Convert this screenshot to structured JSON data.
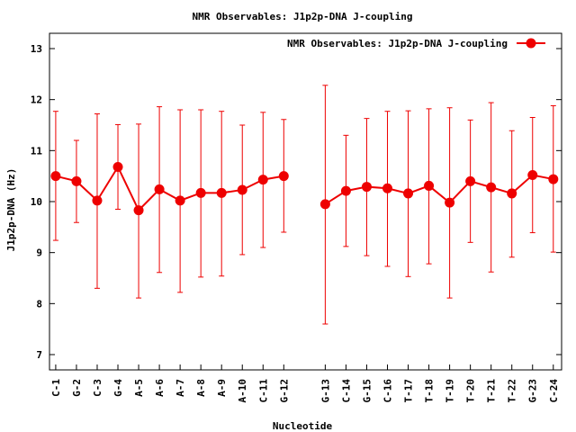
{
  "chart_data": {
    "type": "line",
    "title": "NMR Observables: J1p2p-DNA J-coupling",
    "xlabel": "Nucleotide",
    "ylabel": "J1p2p-DNA (Hz)",
    "ylim": [
      6.7,
      13.3
    ],
    "yticks": [
      7,
      8,
      9,
      10,
      11,
      12,
      13
    ],
    "xlim": [
      0.7,
      25.4
    ],
    "grid": false,
    "legend_position": "top-right",
    "series": [
      {
        "name": "NMR Observables: J1p2p-DNA J-coupling",
        "color": "#ee0000",
        "marker": "circle",
        "segments": [
          {
            "points": [
              {
                "x": 1,
                "label": "C-1",
                "y": 10.5,
                "err_low": 9.24,
                "err_high": 11.77
              },
              {
                "x": 2,
                "label": "G-2",
                "y": 10.4,
                "err_low": 9.59,
                "err_high": 11.2
              },
              {
                "x": 3,
                "label": "C-3",
                "y": 10.02,
                "err_low": 8.3,
                "err_high": 11.72
              },
              {
                "x": 4,
                "label": "G-4",
                "y": 10.68,
                "err_low": 9.85,
                "err_high": 11.51
              },
              {
                "x": 5,
                "label": "A-5",
                "y": 9.83,
                "err_low": 8.11,
                "err_high": 11.52
              },
              {
                "x": 6,
                "label": "A-6",
                "y": 10.24,
                "err_low": 8.61,
                "err_high": 11.86
              },
              {
                "x": 7,
                "label": "A-7",
                "y": 10.02,
                "err_low": 8.22,
                "err_high": 11.8
              },
              {
                "x": 8,
                "label": "A-8",
                "y": 10.17,
                "err_low": 8.52,
                "err_high": 11.8
              },
              {
                "x": 9,
                "label": "A-9",
                "y": 10.17,
                "err_low": 8.54,
                "err_high": 11.77
              },
              {
                "x": 10,
                "label": "A-10",
                "y": 10.23,
                "err_low": 8.96,
                "err_high": 11.5
              },
              {
                "x": 11,
                "label": "C-11",
                "y": 10.43,
                "err_low": 9.1,
                "err_high": 11.75
              },
              {
                "x": 12,
                "label": "G-12",
                "y": 10.5,
                "err_low": 9.4,
                "err_high": 11.61
              }
            ]
          },
          {
            "points": [
              {
                "x": 14,
                "label": "G-13",
                "y": 9.95,
                "err_low": 7.6,
                "err_high": 12.28
              },
              {
                "x": 15,
                "label": "C-14",
                "y": 10.21,
                "err_low": 9.12,
                "err_high": 11.3
              },
              {
                "x": 16,
                "label": "G-15",
                "y": 10.29,
                "err_low": 8.94,
                "err_high": 11.63
              },
              {
                "x": 17,
                "label": "C-16",
                "y": 10.26,
                "err_low": 8.73,
                "err_high": 11.77
              },
              {
                "x": 18,
                "label": "T-17",
                "y": 10.16,
                "err_low": 8.53,
                "err_high": 11.78
              },
              {
                "x": 19,
                "label": "T-18",
                "y": 10.31,
                "err_low": 8.78,
                "err_high": 11.82
              },
              {
                "x": 20,
                "label": "T-19",
                "y": 9.98,
                "err_low": 8.11,
                "err_high": 11.84
              },
              {
                "x": 21,
                "label": "T-20",
                "y": 10.4,
                "err_low": 9.2,
                "err_high": 11.6
              },
              {
                "x": 22,
                "label": "T-21",
                "y": 10.28,
                "err_low": 8.62,
                "err_high": 11.94
              },
              {
                "x": 23,
                "label": "T-22",
                "y": 10.16,
                "err_low": 8.91,
                "err_high": 11.39
              },
              {
                "x": 24,
                "label": "G-23",
                "y": 10.52,
                "err_low": 9.39,
                "err_high": 11.65
              },
              {
                "x": 25,
                "label": "C-24",
                "y": 10.44,
                "err_low": 9.01,
                "err_high": 11.88
              }
            ]
          }
        ]
      }
    ]
  }
}
